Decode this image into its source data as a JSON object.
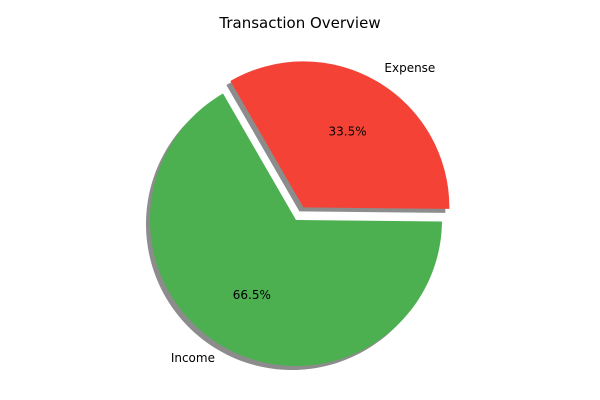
{
  "chart_data": {
    "type": "pie",
    "title": "Transaction Overview",
    "slices": [
      {
        "label": "Income",
        "value": 66.5,
        "pct_label": "66.5%",
        "color": "#4caf50",
        "exploded": false
      },
      {
        "label": "Expense",
        "value": 33.5,
        "pct_label": "33.5%",
        "color": "#f44336",
        "exploded": true
      }
    ],
    "shadow": true,
    "start_angle": 120,
    "direction": "counterclockwise",
    "legend": "none"
  }
}
